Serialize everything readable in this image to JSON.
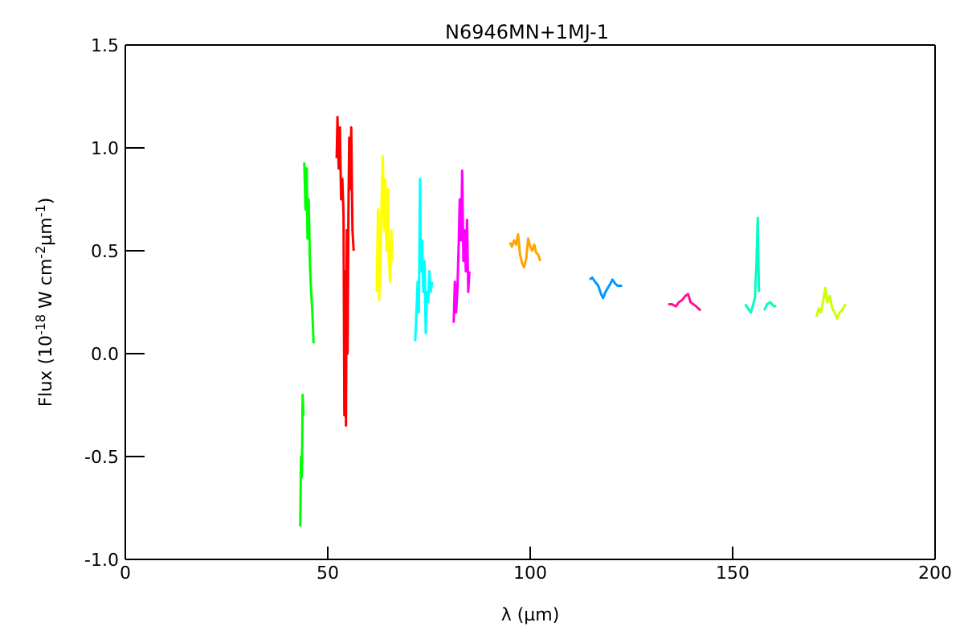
{
  "chart_data": {
    "type": "line",
    "title": "N6946MN+1MJ-1",
    "xlabel": "λ (μm)",
    "ylabel": "Flux (10$^{-18}$ W cm$^{-2}$μm$^{-1}$)",
    "xlim": [
      0,
      200
    ],
    "xticks": [
      0,
      50,
      100,
      150,
      200
    ],
    "ylim": [
      -1.0,
      1.5
    ],
    "yticks": [
      {
        "value": -1.0,
        "label": "-1.0"
      },
      {
        "value": -0.5,
        "label": "-0.5"
      },
      {
        "value": 0,
        "label": "0.0"
      },
      {
        "value": 0.5,
        "label": "0.5"
      },
      {
        "value": 1.0,
        "label": "1.0"
      },
      {
        "value": 1.5,
        "label": "1.5"
      }
    ],
    "legend": false,
    "marker": "none",
    "line_style": "solid",
    "series": [
      {
        "color": "#00ff00",
        "x": [
          43.2,
          43.4,
          43.6,
          43.8,
          44.0,
          44.1,
          44.2,
          44.5,
          44.8,
          45.0,
          45.3,
          45.6,
          45.9,
          46.2,
          46.5
        ],
        "values": [
          -0.84,
          -0.5,
          -0.6,
          -0.2,
          -0.3,
          null,
          0.93,
          0.7,
          0.9,
          0.56,
          0.75,
          0.43,
          0.3,
          0.2,
          0.05
        ]
      },
      {
        "color": "#ff0000",
        "x": [
          52.2,
          52.4,
          52.7,
          53.0,
          53.3,
          53.6,
          53.9,
          54.1,
          54.3,
          54.5,
          54.7,
          54.9,
          55.1,
          55.3,
          55.5,
          55.8,
          56.1,
          56.4
        ],
        "values": [
          0.95,
          1.15,
          0.9,
          1.1,
          0.75,
          0.85,
          0.67,
          -0.3,
          0.4,
          -0.35,
          0.6,
          0.0,
          0.67,
          1.05,
          0.8,
          1.1,
          0.6,
          0.5
        ]
      },
      {
        "color": "#ffff00",
        "x": [
          62.1,
          62.4,
          62.7,
          63.0,
          63.3,
          63.6,
          63.9,
          64.2,
          64.5,
          64.8,
          65.1,
          65.4,
          65.7,
          65.9
        ],
        "values": [
          0.3,
          0.7,
          0.26,
          0.45,
          0.75,
          0.96,
          0.6,
          0.85,
          0.5,
          0.8,
          0.45,
          0.35,
          0.6,
          0.45
        ]
      },
      {
        "color": "#00ffff",
        "x": [
          71.6,
          71.9,
          72.2,
          72.5,
          72.8,
          73.0,
          73.3,
          73.6,
          73.9,
          74.2,
          74.5,
          74.8,
          75.1,
          75.4,
          75.8
        ],
        "values": [
          0.06,
          0.2,
          0.35,
          0.2,
          0.85,
          0.4,
          0.55,
          0.3,
          0.45,
          0.1,
          0.3,
          0.25,
          0.4,
          0.3,
          0.35
        ]
      },
      {
        "color": "#ff00ff",
        "x": [
          81.1,
          81.4,
          81.7,
          82.0,
          82.3,
          82.6,
          82.9,
          83.2,
          83.5,
          83.8,
          84.1,
          84.4,
          84.7,
          85.0
        ],
        "values": [
          0.15,
          0.35,
          0.2,
          0.3,
          0.5,
          0.75,
          0.55,
          0.89,
          0.45,
          0.6,
          0.4,
          0.65,
          0.3,
          0.4
        ]
      },
      {
        "color": "#ffa500",
        "x": [
          95,
          95.5,
          96,
          96.5,
          97,
          97.5,
          98,
          98.5,
          99,
          99.5,
          100,
          100.5,
          101,
          101.5,
          102,
          102.5
        ],
        "values": [
          0.54,
          0.52,
          0.55,
          0.53,
          0.58,
          0.48,
          0.44,
          0.42,
          0.46,
          0.56,
          0.52,
          0.5,
          0.53,
          0.49,
          0.48,
          0.45
        ]
      },
      {
        "color": "#0099ff",
        "x": [
          114.7,
          115.3,
          116,
          116.8,
          117.5,
          118,
          118.6,
          119.2,
          119.8,
          120.3,
          121,
          121.6,
          122.7
        ],
        "values": [
          0.36,
          0.37,
          0.35,
          0.33,
          0.29,
          0.27,
          0.3,
          0.32,
          0.34,
          0.36,
          0.34,
          0.33,
          0.33
        ]
      },
      {
        "color": "#ff1493",
        "x": [
          134.1,
          135,
          136,
          136.7,
          137.5,
          138.3,
          139,
          139.6,
          140.3,
          141,
          141.5,
          142.1
        ],
        "values": [
          0.24,
          0.24,
          0.23,
          0.25,
          0.26,
          0.28,
          0.29,
          0.25,
          0.24,
          0.23,
          0.22,
          0.21
        ]
      },
      {
        "color": "#00ffc0",
        "x": [
          153.1,
          153.8,
          154.5,
          155.5,
          155.9,
          156.2,
          156.5,
          157.2,
          157.8,
          158.5,
          159.3,
          160.2,
          160.8
        ],
        "values": [
          0.24,
          0.22,
          0.2,
          0.27,
          0.45,
          0.66,
          0.3,
          null,
          0.21,
          0.24,
          0.25,
          0.23,
          0.23
        ]
      },
      {
        "color": "#ccff00",
        "x": [
          170.7,
          171.3,
          171.8,
          172.4,
          172.9,
          173.4,
          174,
          174.6,
          175.2,
          175.8,
          176.4,
          177,
          177.9
        ],
        "values": [
          0.18,
          0.22,
          0.2,
          0.26,
          0.32,
          0.25,
          0.28,
          0.22,
          0.2,
          0.17,
          0.2,
          0.21,
          0.24
        ]
      }
    ]
  }
}
